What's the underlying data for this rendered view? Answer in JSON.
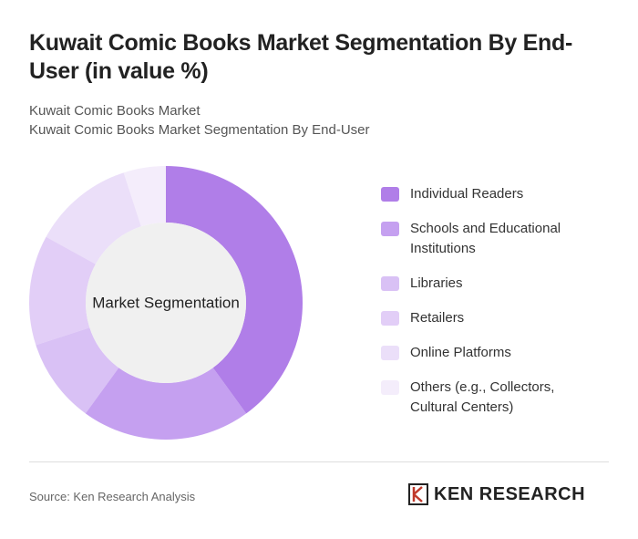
{
  "chart_data": {
    "type": "pie",
    "donut": true,
    "title": "Kuwait Comic Books Market Segmentation By End-User (in value %)",
    "subtitle": [
      "Kuwait Comic Books Market",
      "Kuwait Comic Books Market Segmentation By End-User"
    ],
    "center_label": "Market Segmentation",
    "categories": [
      "Individual Readers",
      "Schools and Educational Institutions",
      "Libraries",
      "Retailers",
      "Online Platforms",
      "Others (e.g., Collectors, Cultural Centers)"
    ],
    "values": [
      40,
      20,
      10,
      13,
      12,
      5
    ],
    "colors": [
      "#b07ee8",
      "#c5a0f0",
      "#d9c1f5",
      "#e2cef7",
      "#ebdff9",
      "#f4edfb"
    ],
    "source": "Source: Ken Research Analysis",
    "logo": "KEN RESEARCH"
  }
}
